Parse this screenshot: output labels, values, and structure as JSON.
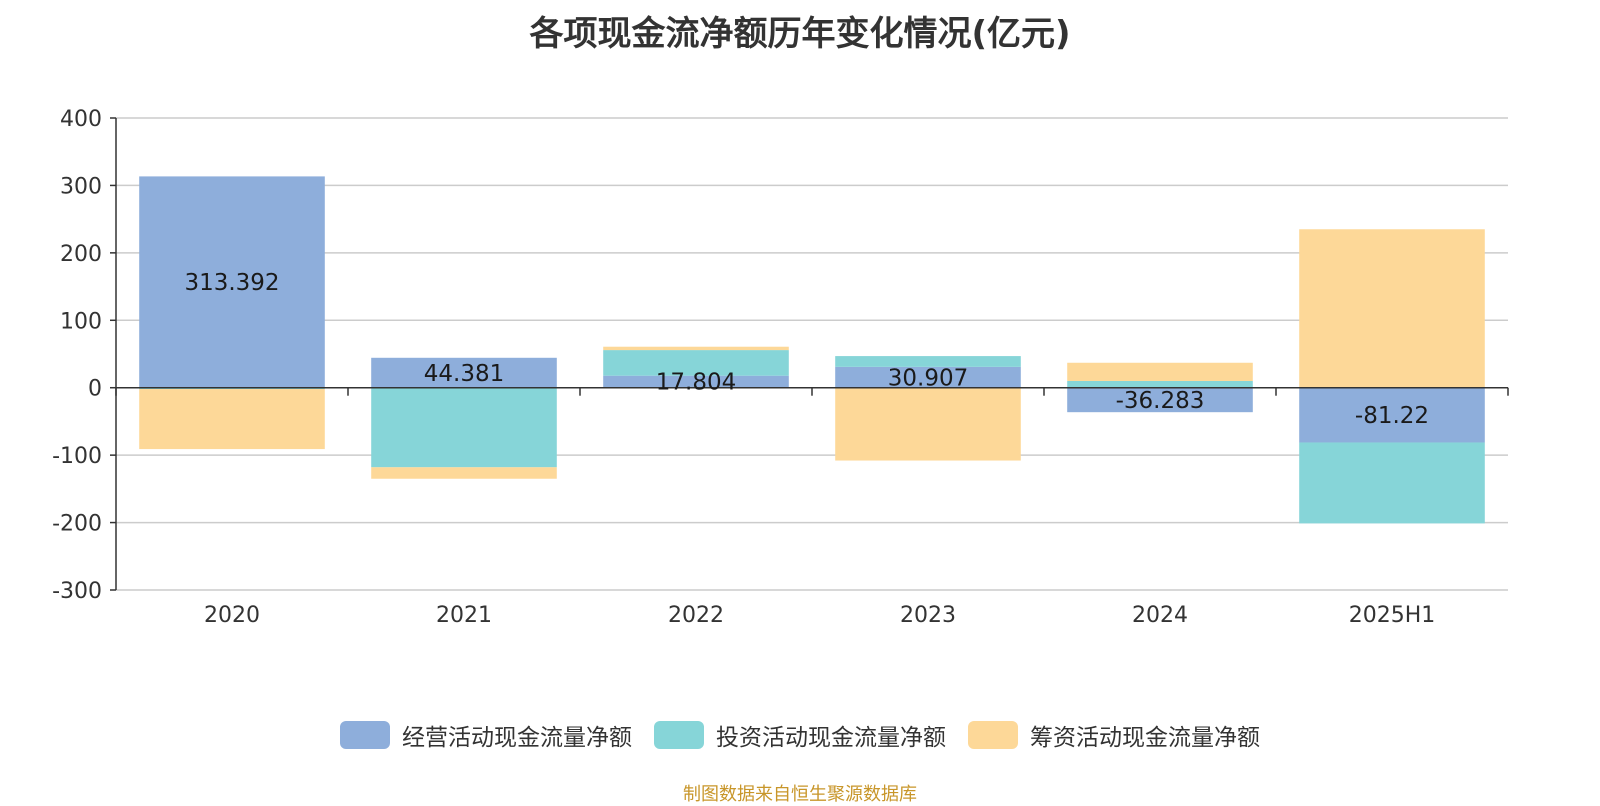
{
  "chart_data": {
    "type": "bar",
    "stacked": true,
    "title": "各项现金流净额历年变化情况(亿元)",
    "categories": [
      "2020",
      "2021",
      "2022",
      "2023",
      "2024",
      "2025H1"
    ],
    "ylim": [
      -300,
      400
    ],
    "yticks": [
      400,
      300,
      200,
      100,
      0,
      -100,
      -200,
      -300
    ],
    "grid": true,
    "legend_position": "bottom",
    "series": [
      {
        "name": "经营活动现金流量净额",
        "color": "#8eaedb",
        "values": [
          313.392,
          44.381,
          17.804,
          30.907,
          -36.283,
          -81.22
        ],
        "labels": [
          "313.392",
          "44.381",
          "17.804",
          "30.907",
          "-36.283",
          "-81.22"
        ]
      },
      {
        "name": "投资活动现金流量净额",
        "color": "#86d5d8",
        "values": [
          -2,
          -118,
          38,
          16,
          10,
          -120
        ]
      },
      {
        "name": "筹资活动现金流量净额",
        "color": "#fdd898",
        "values": [
          -89,
          -17,
          5,
          -108,
          27,
          235
        ]
      }
    ],
    "source": "制图数据来自恒生聚源数据库"
  }
}
